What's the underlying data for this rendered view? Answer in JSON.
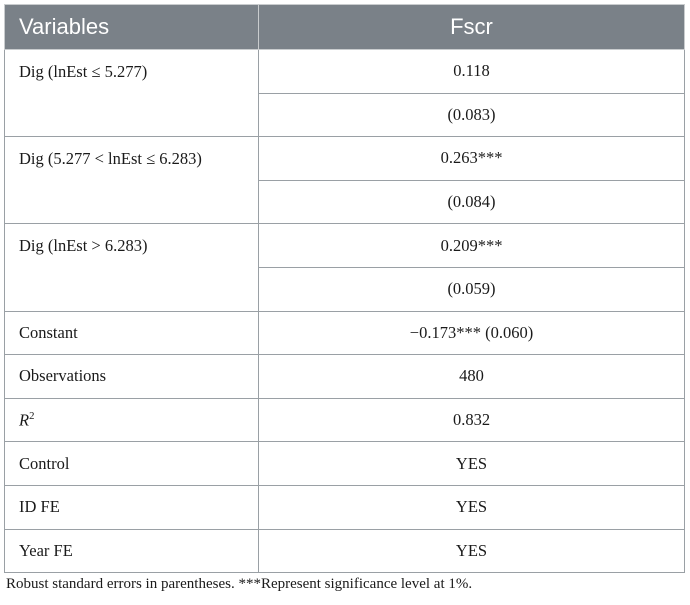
{
  "table": {
    "headers": {
      "variables": "Variables",
      "dependent": "Fscr"
    },
    "grouped_rows": [
      {
        "label": "Dig (lnEst ≤ 5.277)",
        "coef": "0.118",
        "se": "(0.083)"
      },
      {
        "label": "Dig (5.277 < lnEst ≤ 6.283)",
        "coef": "0.263***",
        "se": "(0.084)"
      },
      {
        "label": "Dig (lnEst > 6.283)",
        "coef": "0.209***",
        "se": "(0.059)"
      }
    ],
    "constant": {
      "label": "Constant",
      "value": "−0.173*** (0.060)"
    },
    "observations": {
      "label": "Observations",
      "value": "480"
    },
    "r2": {
      "label_base": "R",
      "label_sup": "2",
      "value": "0.832"
    },
    "control": {
      "label": "Control",
      "value": "YES"
    },
    "id_fe": {
      "label": "ID FE",
      "value": "YES"
    },
    "year_fe": {
      "label": "Year FE",
      "value": "YES"
    }
  },
  "note": "Robust standard errors in parentheses. ***Represent significance level at 1%."
}
